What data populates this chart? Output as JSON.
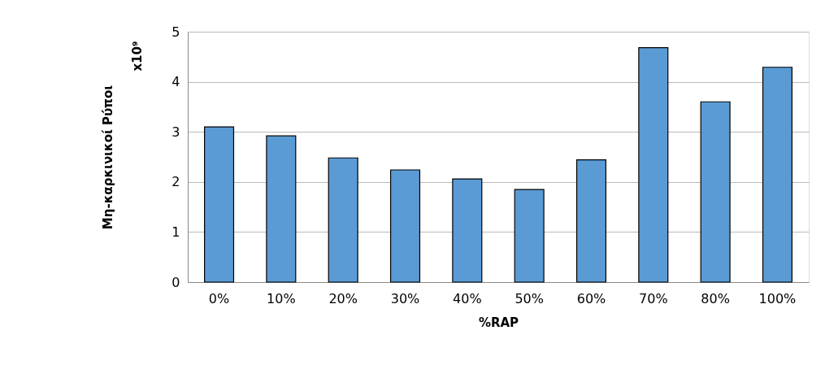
{
  "chart_data": {
    "type": "bar",
    "xlabel": "%RAP",
    "ylabel": "Μη-καρκινικοί Ρύποι",
    "annotations": [
      "x10⁹"
    ],
    "categories": [
      "0%",
      "10%",
      "20%",
      "30%",
      "40%",
      "50%",
      "60%",
      "70%",
      "80%",
      "100%"
    ],
    "values": [
      3.1,
      2.92,
      2.48,
      2.24,
      2.06,
      1.85,
      2.44,
      4.68,
      3.6,
      4.29
    ],
    "color": "#5b9bd5",
    "ylim": [
      0,
      5
    ],
    "yticks": [
      0,
      1,
      2,
      3,
      4,
      5
    ],
    "grid": "y"
  }
}
